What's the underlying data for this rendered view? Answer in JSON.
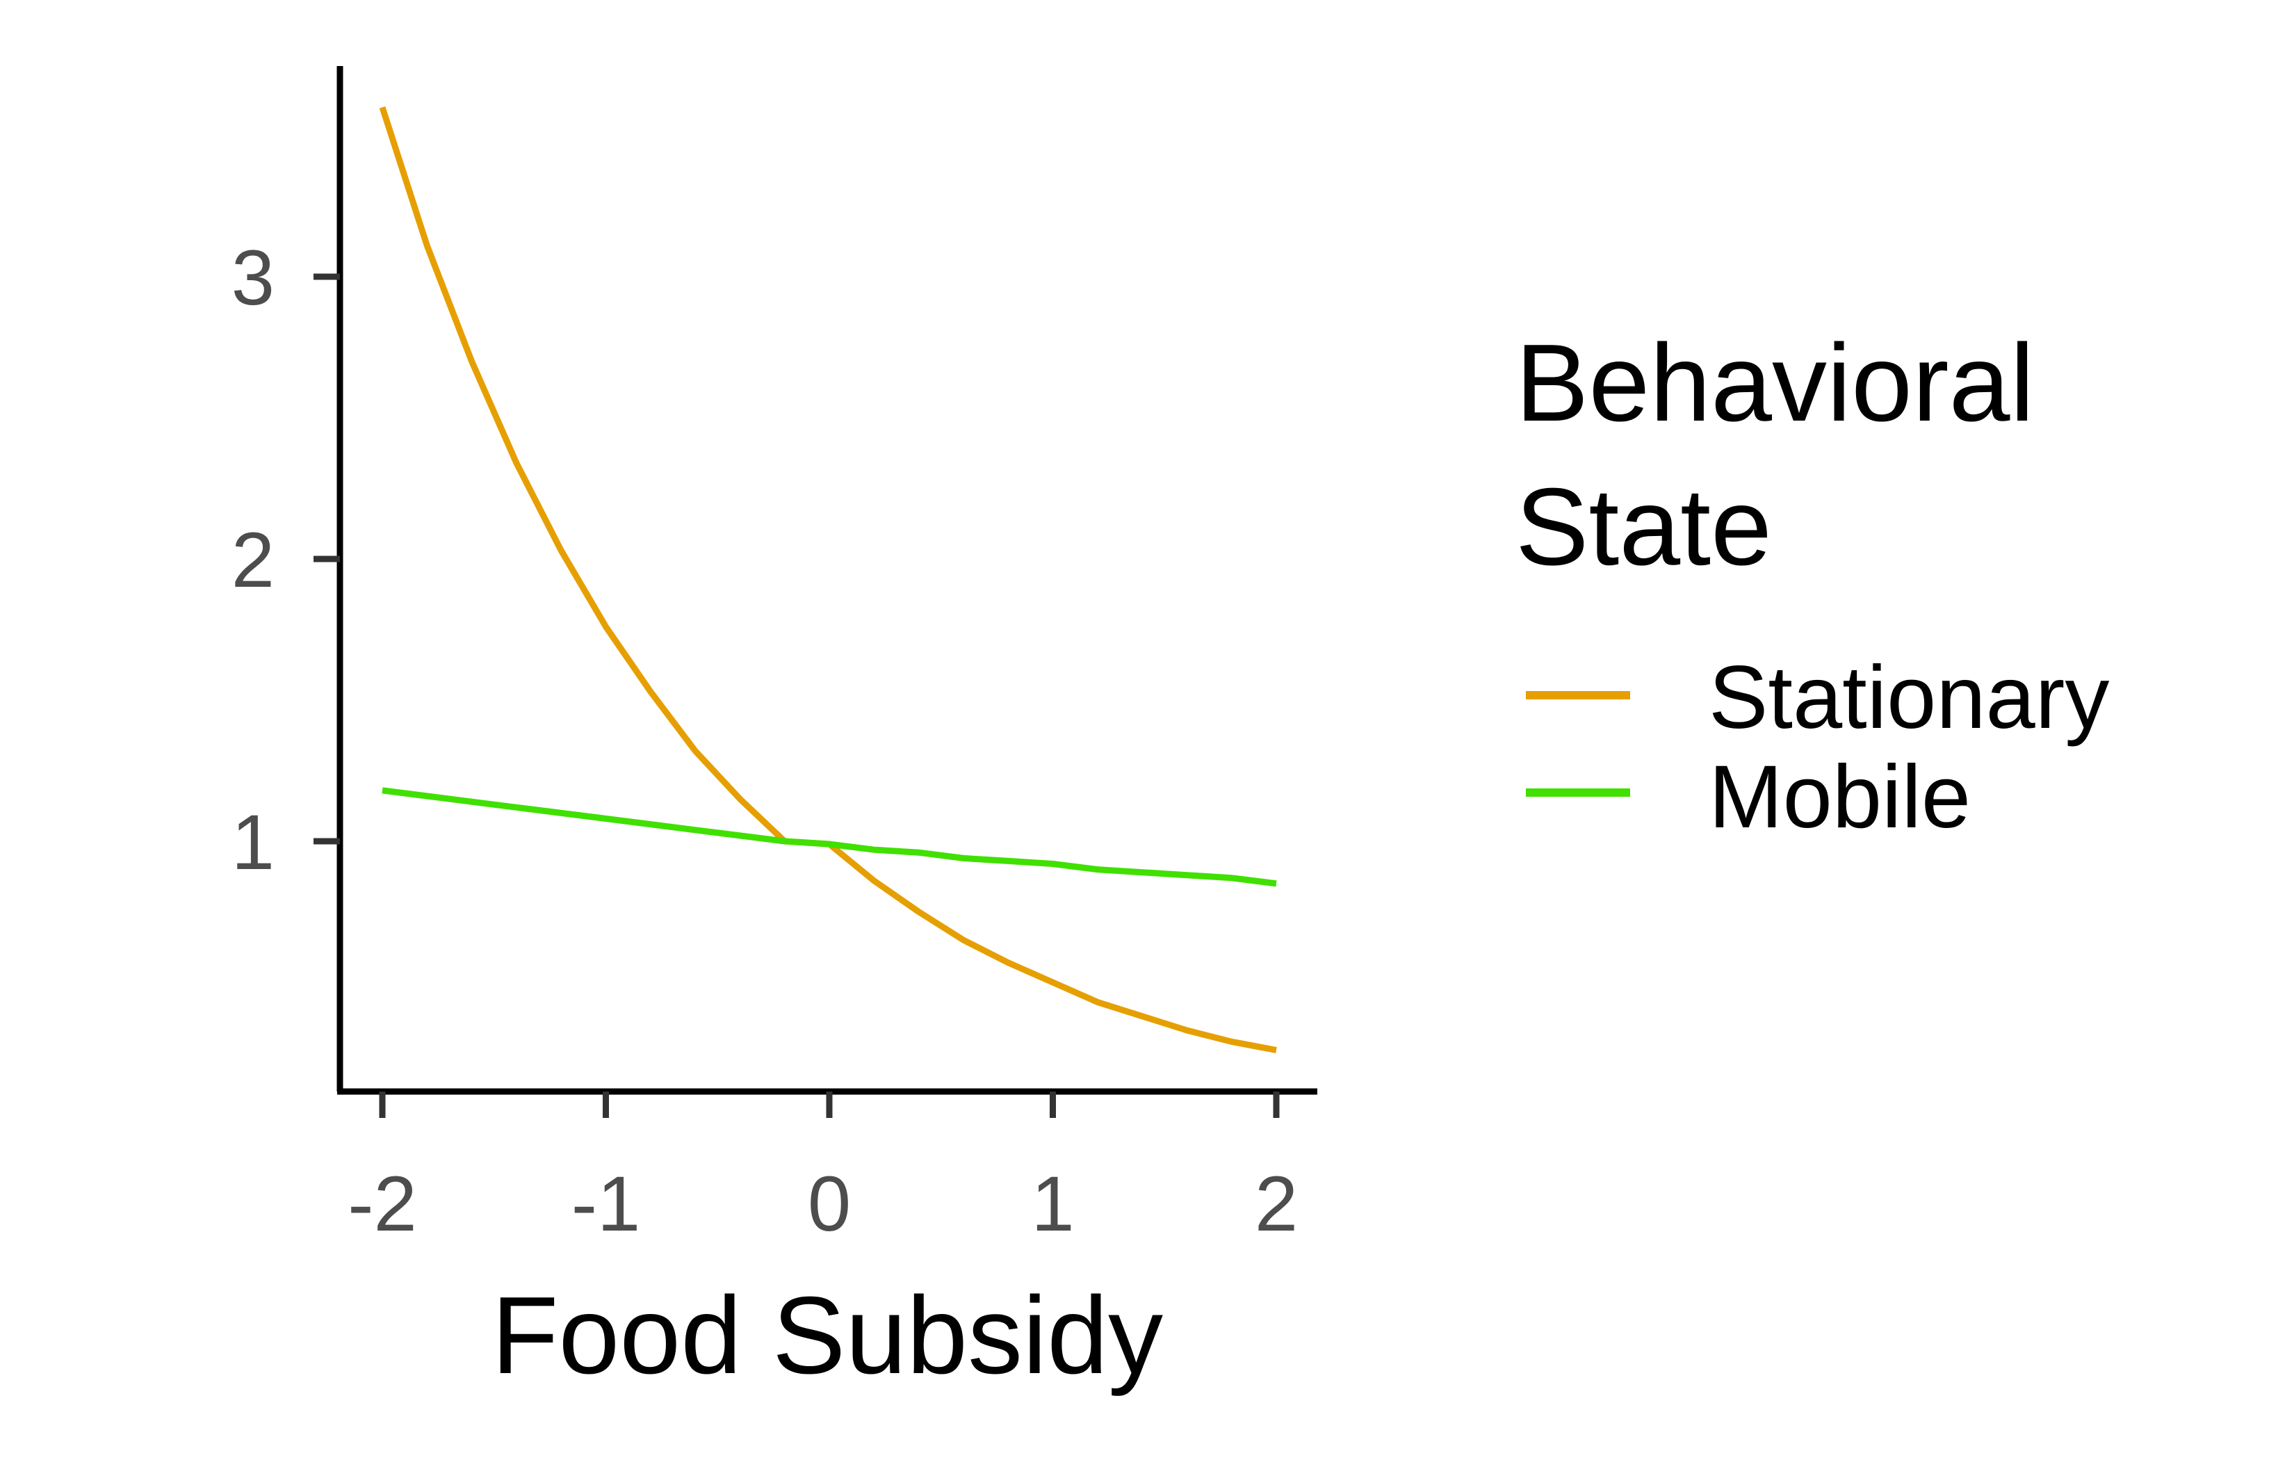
{
  "chart_data": {
    "type": "line",
    "title": "",
    "xlabel": "Food Subsidy",
    "ylabel": "",
    "xlim": [
      -2.1,
      2.2
    ],
    "ylim": [
      0.15,
      3.75
    ],
    "x_ticks": [
      "-2",
      "-1",
      "0",
      "1",
      "2"
    ],
    "y_ticks": [
      "1",
      "2",
      "3"
    ],
    "grid": false,
    "legend": {
      "title_lines": [
        "Behavioral",
        "State"
      ],
      "position": "right"
    },
    "x": [
      -2.0,
      -1.8,
      -1.6,
      -1.4,
      -1.2,
      -1.0,
      -0.8,
      -0.6,
      -0.4,
      -0.2,
      0.0,
      0.2,
      0.4,
      0.6,
      0.8,
      1.0,
      1.2,
      1.4,
      1.6,
      1.8,
      2.0
    ],
    "series": [
      {
        "name": "Stationary",
        "color": "#E69F00",
        "values": [
          3.6,
          3.11,
          2.7,
          2.34,
          2.03,
          1.76,
          1.53,
          1.32,
          1.15,
          1.0,
          0.99,
          0.86,
          0.75,
          0.65,
          0.57,
          0.5,
          0.43,
          0.38,
          0.33,
          0.29,
          0.26
        ]
      },
      {
        "name": "Mobile",
        "color": "#40E000",
        "values": [
          1.18,
          1.16,
          1.14,
          1.12,
          1.1,
          1.08,
          1.06,
          1.04,
          1.02,
          1.0,
          0.99,
          0.97,
          0.96,
          0.94,
          0.93,
          0.92,
          0.9,
          0.89,
          0.88,
          0.87,
          0.85
        ]
      }
    ]
  }
}
